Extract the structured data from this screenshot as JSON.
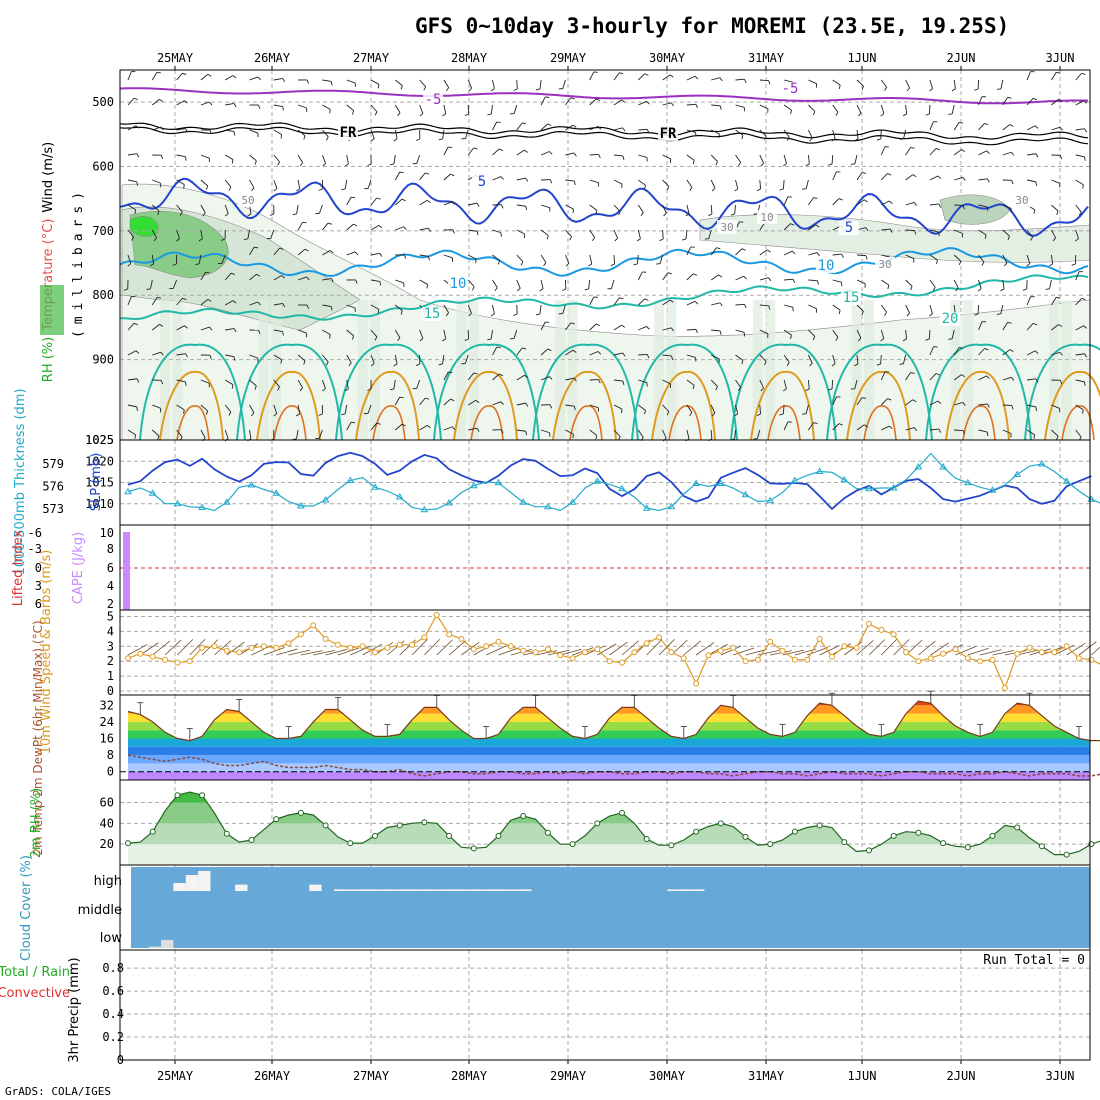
{
  "title": "GFS 0~10day 3-hourly for MOREMI (23.5E, 19.25S)",
  "footer": "GrADS: COLA/IGES",
  "dates": [
    "25MAY",
    "26MAY",
    "27MAY",
    "28MAY",
    "29MAY",
    "30MAY",
    "31MAY",
    "1JUN",
    "2JUN",
    "3JUN"
  ],
  "colors": {
    "purple": "#9a2fc0",
    "blue": "#2244cc",
    "cyan": "#22aacc",
    "teal": "#22b8a8",
    "orange": "#e09a20",
    "lightblue": "#1a99e0",
    "sky": "#66a8d8",
    "green": "#44cc44",
    "violet": "#cc88ff"
  },
  "chart_data": [
    {
      "id": "upper-air",
      "type": "contour",
      "ylabel_parts": [
        "RH (%)",
        "Temperature (°C)",
        "Wind (m/s)"
      ],
      "axis_caption": "(millibars)",
      "yticks": [
        500,
        600,
        700,
        800,
        900,
        1025
      ],
      "ylim": [
        450,
        1025
      ],
      "contour_labels": [
        {
          "text": "-5",
          "color": "#9a2fc0"
        },
        {
          "text": "-5",
          "color": "#9a2fc0"
        },
        {
          "text": "FR",
          "color": "#000000"
        },
        {
          "text": "FR",
          "color": "#000000"
        },
        {
          "text": "5",
          "color": "#2244cc"
        },
        {
          "text": "5",
          "color": "#2244cc"
        },
        {
          "text": "10",
          "color": "#1a99e0"
        },
        {
          "text": "10",
          "color": "#1a99e0"
        },
        {
          "text": "15",
          "color": "#22b8a8"
        },
        {
          "text": "15",
          "color": "#22b8a8"
        },
        {
          "text": "20",
          "color": "#22b8a8"
        },
        {
          "text": "50",
          "color": "#888888"
        },
        {
          "text": "30",
          "color": "#888888"
        },
        {
          "text": "30",
          "color": "#888888"
        },
        {
          "text": "30",
          "color": "#888888"
        },
        {
          "text": "10",
          "color": "#888888"
        }
      ]
    },
    {
      "id": "slp-thickness",
      "type": "line",
      "ylabel_left": "1000-500mb Thickness (dm)",
      "ylabel_right": "SLP (mb)",
      "left_ticks": [
        573,
        576,
        579
      ],
      "right_ticks": [
        1010,
        1015,
        1020,
        1025
      ],
      "series": [
        {
          "name": "SLP",
          "axis": "right",
          "color": "#2244cc",
          "values": [
            1014.5,
            1015.3,
            1017.8,
            1019.8,
            1020.4,
            1018.9,
            1020.6,
            1018.1,
            1016.4,
            1015.2,
            1016.7,
            1019.4,
            1019.8,
            1019.7,
            1017.0,
            1016.6,
            1019.6,
            1021.2,
            1022.0,
            1021.2,
            1019.4,
            1016.8,
            1017.8,
            1020.0,
            1021.5,
            1020.7,
            1018.1,
            1016.7,
            1015.5,
            1014.9,
            1016.6,
            1019.0,
            1020.5,
            1020.1,
            1018.2,
            1016.5,
            1016.7,
            1018.3,
            1017.2,
            1013.5,
            1011.8,
            1013.4,
            1016.5,
            1017.4,
            1015.1,
            1011.8,
            1010.5,
            1011.5,
            1016.1,
            1017.3,
            1018.4,
            1016.8,
            1014.8,
            1014.7,
            1014.9,
            1014.6,
            1011.8,
            1008.8,
            1011.3,
            1013.1,
            1014.2,
            1012.2,
            1013.8,
            1015.4,
            1015.8,
            1013.7,
            1011.1,
            1010.5,
            1011.2,
            1011.9,
            1013.1,
            1014.3,
            1013.7,
            1011.1,
            1010.0,
            1010.7,
            1014.1,
            1015.3,
            1016.5
          ]
        },
        {
          "name": "Thickness",
          "axis": "left",
          "color": "#22aacc",
          "values": [
            575.3,
            575.8,
            575.1,
            573.7,
            573.7,
            573.3,
            573.2,
            572.8,
            573.9,
            575.9,
            576.2,
            575.6,
            575.1,
            574.0,
            573.4,
            573.4,
            574.2,
            575.6,
            576.8,
            577.2,
            575.9,
            575.4,
            574.6,
            573.2,
            572.9,
            573.0,
            573.8,
            575.2,
            576.1,
            576.6,
            576.5,
            575.2,
            573.9,
            573.3,
            573.3,
            572.8,
            573.9,
            575.8,
            576.7,
            576.3,
            575.7,
            574.6,
            573.1,
            572.8,
            573.3,
            575.0,
            576.4,
            576.0,
            576.4,
            575.8,
            574.9,
            574.0,
            574.1,
            575.2,
            576.8,
            577.5,
            578.0,
            577.9,
            576.9,
            575.7,
            575.7,
            575.8,
            575.8,
            576.9,
            578.6,
            580.4,
            578.6,
            577.1,
            576.5,
            575.9,
            575.5,
            576.2,
            577.6,
            578.7,
            579.0,
            578.0,
            576.7,
            575.4,
            574.3,
            573.6
          ]
        }
      ]
    },
    {
      "id": "cape-li",
      "type": "bar",
      "ylabel_left": "Lifted Index",
      "ylabel_right": "CAPE (J/kg)",
      "left_ticks": [
        "-6",
        "-3",
        "0",
        "3",
        "6"
      ],
      "right_ticks": [
        "10",
        "8",
        "6",
        "4",
        "2"
      ],
      "series": [
        {
          "name": "CAPE",
          "color": "#cc88ff",
          "values": [
            10
          ]
        },
        {
          "name": "Lifted Index",
          "color": "#e03030",
          "values": [
            0
          ]
        }
      ]
    },
    {
      "id": "wind10m",
      "type": "line",
      "ylabel": "10m Wind Speed & Barbs (m/s)",
      "yticks": [
        0,
        1,
        2,
        3,
        4,
        5
      ],
      "series": [
        {
          "name": "Speed",
          "color": "#e09a20",
          "values": [
            2.2,
            2.5,
            2.3,
            2.1,
            1.9,
            2.0,
            2.9,
            3.0,
            2.7,
            2.6,
            2.9,
            3.0,
            2.9,
            3.2,
            3.8,
            4.4,
            3.5,
            3.1,
            2.9,
            3.0,
            2.6,
            2.9,
            3.1,
            3.1,
            3.6,
            5.1,
            3.8,
            3.5,
            2.8,
            3.0,
            3.3,
            3.0,
            2.7,
            2.6,
            2.8,
            2.4,
            2.2,
            2.6,
            2.8,
            2.0,
            1.9,
            2.6,
            3.2,
            3.6,
            2.6,
            2.2,
            0.5,
            2.4,
            2.7,
            2.9,
            2.0,
            2.1,
            3.3,
            2.7,
            2.1,
            2.1,
            3.5,
            2.3,
            3.0,
            2.9,
            4.5,
            4.1,
            3.8,
            2.6,
            2.0,
            2.2,
            2.5,
            2.8,
            2.2,
            2.0,
            2.1,
            0.2,
            2.5,
            2.9,
            2.6,
            2.6,
            3.0,
            2.2,
            2.1,
            1.7
          ]
        }
      ]
    },
    {
      "id": "temp",
      "type": "area",
      "ylabel": "2m Temp 2m DewPt (6hr Min/Max) (°C)",
      "yticks": [
        0,
        8,
        16,
        24,
        32
      ],
      "series": [
        {
          "name": "2m Temp",
          "values": [
            29,
            27.5,
            24,
            19,
            16,
            15,
            17,
            25,
            30,
            29,
            24,
            19,
            16,
            16,
            17,
            24,
            30,
            30,
            25,
            20,
            17,
            17,
            18,
            25,
            31,
            31,
            25,
            20,
            16,
            16,
            18,
            26,
            31,
            31,
            26,
            21,
            17,
            16,
            18,
            26,
            31,
            31,
            26,
            21,
            17,
            16,
            18,
            26,
            32,
            31,
            26,
            21,
            18,
            17,
            19,
            27,
            33,
            32,
            27,
            22,
            18,
            17,
            19,
            28,
            34,
            33,
            27,
            22,
            19,
            17,
            19,
            28,
            33,
            32,
            27,
            22,
            19,
            16,
            15,
            15
          ]
        },
        {
          "name": "2m DewPt",
          "values": [
            8,
            7,
            6,
            5,
            6,
            7,
            6,
            4,
            3,
            3,
            4,
            5,
            3,
            2,
            2,
            2,
            3,
            2,
            1,
            1,
            0,
            0,
            1,
            -1,
            -2,
            -1,
            0,
            0,
            -1,
            -1,
            0,
            0,
            -1,
            -1,
            0,
            -1,
            0,
            -1,
            0,
            0,
            -1,
            -1,
            0,
            0,
            -1,
            0,
            0,
            -1,
            -1,
            -2,
            -1,
            0,
            0,
            -1,
            -1,
            -2,
            -1,
            0,
            -1,
            -1,
            -1,
            -2,
            -1,
            0,
            0,
            -1,
            -1,
            -1,
            -2,
            -1,
            -1,
            0,
            -1,
            -2,
            -1,
            -1,
            -1,
            -2,
            -2,
            -1
          ]
        }
      ]
    },
    {
      "id": "rh2m",
      "type": "area",
      "ylabel": "2m RH (%)",
      "yticks": [
        20,
        40,
        60
      ],
      "series": [
        {
          "name": "2m RH",
          "values": [
            21,
            22,
            32,
            52,
            67,
            70,
            67,
            50,
            30,
            22,
            24,
            34,
            44,
            48,
            50,
            48,
            38,
            27,
            21,
            21,
            28,
            36,
            38,
            40,
            41,
            40,
            28,
            17,
            16,
            17,
            28,
            43,
            47,
            44,
            31,
            20,
            20,
            28,
            40,
            47,
            50,
            40,
            25,
            19,
            19,
            24,
            32,
            37,
            40,
            37,
            27,
            19,
            20,
            24,
            32,
            36,
            38,
            36,
            22,
            13,
            14,
            20,
            28,
            32,
            31,
            28,
            21,
            18,
            17,
            20,
            28,
            38,
            36,
            26,
            18,
            10,
            10,
            13,
            20,
            24
          ]
        }
      ]
    },
    {
      "id": "cloud",
      "type": "bar",
      "ylabel": "Cloud Cover (%)",
      "levels": [
        "high",
        "middle",
        "low"
      ],
      "series": [
        {
          "name": "high",
          "values": [
            0,
            0,
            0,
            0,
            10,
            20,
            25,
            0,
            0,
            8,
            0,
            0,
            0,
            0,
            0,
            8,
            0,
            2,
            2,
            2,
            2,
            2,
            2,
            2,
            2,
            2,
            2,
            2,
            2,
            2,
            2,
            2,
            2,
            0,
            0,
            0,
            0,
            0,
            0,
            0,
            0,
            0,
            0,
            0,
            2,
            2,
            2,
            0,
            0,
            0,
            0,
            0,
            0,
            0,
            0,
            0,
            0,
            0,
            0,
            0,
            0,
            0,
            0,
            0,
            0,
            0,
            0,
            0,
            0,
            0,
            0,
            0,
            0,
            0,
            0,
            0,
            0,
            0,
            0,
            0
          ]
        },
        {
          "name": "low",
          "values": [
            0,
            0,
            3,
            18,
            0,
            0,
            0,
            0,
            0,
            0,
            0,
            0,
            0,
            0,
            0,
            0,
            0,
            0,
            0,
            0,
            0,
            0,
            0,
            0,
            0,
            0,
            0,
            0,
            0,
            0,
            0,
            0,
            0,
            0,
            0,
            0,
            0,
            0,
            0,
            0,
            0,
            0,
            0,
            0,
            0,
            0,
            0,
            0,
            0,
            0,
            0,
            0,
            0,
            0,
            0,
            0,
            0,
            0,
            0,
            0,
            0,
            0,
            0,
            0,
            0,
            0,
            0,
            0,
            0,
            0,
            0,
            0,
            0,
            0,
            0,
            0,
            0,
            0,
            0,
            0
          ]
        }
      ]
    },
    {
      "id": "precip",
      "type": "bar",
      "ylabel_parts": [
        "Total / Rain",
        "Convective"
      ],
      "ylabel": "3hr Precip (mm)",
      "yticks": [
        "0",
        "0.2",
        "0.4",
        "0.6",
        "0.8"
      ],
      "run_total": "Run Total = 0",
      "series": [
        {
          "name": "Total",
          "values": []
        }
      ]
    }
  ]
}
